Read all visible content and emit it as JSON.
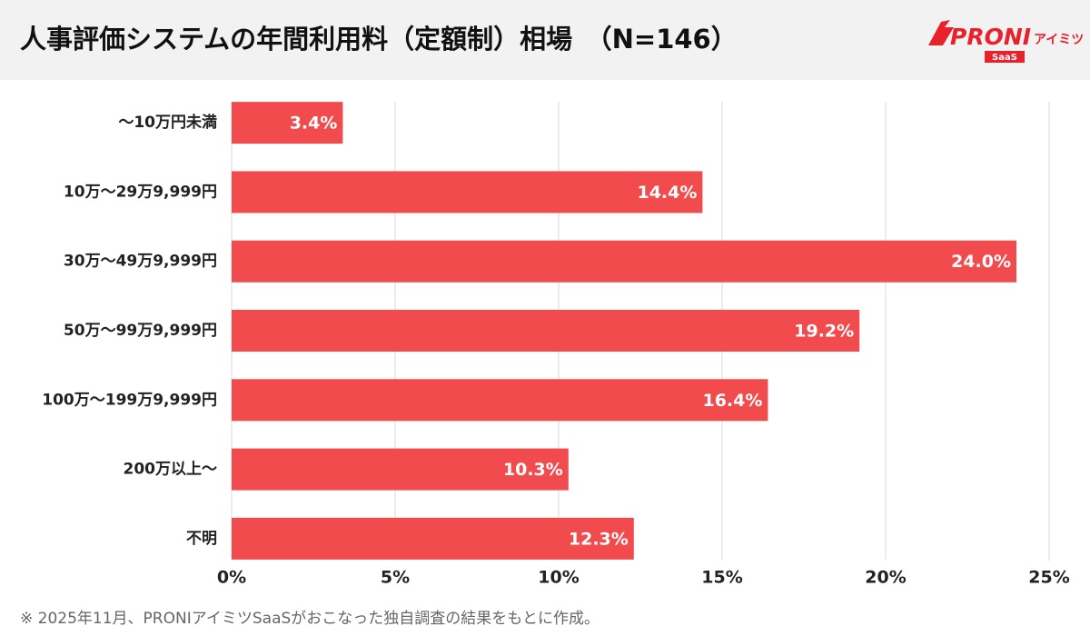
{
  "chart_data": {
    "type": "hbar",
    "title": "人事評価システムの年間利用料（定額制）相場　（N=146）",
    "logo": {
      "brand": "PRONI",
      "sub": "アイミツ",
      "badge": "SaaS"
    },
    "note": "※ 2025年11月、PRONIアイミツSaaSがおこなった独自調査の結果をもとに作成。",
    "categories": [
      "～10万円未満",
      "10万～29万9,999円",
      "30万～49万9,999円",
      "50万～99万9,999円",
      "100万～199万9,999円",
      "200万以上～",
      "不明"
    ],
    "values": [
      3.4,
      14.4,
      24.0,
      19.2,
      16.4,
      10.3,
      12.3
    ],
    "value_labels": [
      "3.4%",
      "14.4%",
      "24.0%",
      "19.2%",
      "16.4%",
      "10.3%",
      "12.3%"
    ],
    "color": "#f24b4e",
    "xlim": [
      0,
      25
    ],
    "xticks": [
      {
        "value": 0,
        "label": "0%"
      },
      {
        "value": 5,
        "label": "5%"
      },
      {
        "value": 10,
        "label": "10%"
      },
      {
        "value": 15,
        "label": "15%"
      },
      {
        "value": 20,
        "label": "20%"
      },
      {
        "value": 25,
        "label": "25%"
      }
    ],
    "grid": true
  }
}
